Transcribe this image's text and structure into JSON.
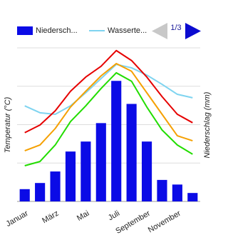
{
  "chart_data": {
    "type": "climate",
    "y_label": "Temperatur (°C)",
    "y2_label": "Niederschlag (mm)",
    "categories": [
      "Januar",
      null,
      "März",
      null,
      "Mai",
      null,
      "Juli",
      null,
      "September",
      null,
      "November",
      null
    ],
    "ylim": [
      -10,
      30
    ],
    "y2lim": [
      0,
      200
    ],
    "grid": true,
    "series": [
      {
        "name": "Niedersch...",
        "type": "bar",
        "axis": "y2",
        "color": "#0b0be6",
        "values": [
          16,
          24,
          39,
          65,
          78,
          102,
          157,
          127,
          78,
          28,
          22,
          11
        ]
      },
      {
        "name": "Wasserte...",
        "type": "line",
        "color": "#7fd4f0",
        "values": [
          14.9,
          13.1,
          12.7,
          14.9,
          18.3,
          22.0,
          25.7,
          24.8,
          22.9,
          20.5,
          17.9,
          17.0
        ]
      },
      {
        "type": "line",
        "color": "#e60000",
        "values": [
          7.9,
          9.9,
          13.6,
          18.7,
          22.4,
          25.2,
          29.3,
          26.7,
          22.4,
          17.3,
          12.7,
          10.5
        ]
      },
      {
        "type": "line",
        "color": "#f5a000",
        "values": [
          3.2,
          4.7,
          9.0,
          14.6,
          18.7,
          22.7,
          25.9,
          23.9,
          18.3,
          12.7,
          7.1,
          5.8
        ]
      },
      {
        "type": "line",
        "color": "#22dd00",
        "values": [
          -0.7,
          0.4,
          4.7,
          10.8,
          14.9,
          19.4,
          23.5,
          21.3,
          14.6,
          8.6,
          4.7,
          2.3
        ]
      }
    ],
    "legend": {
      "page": "1/3"
    }
  }
}
